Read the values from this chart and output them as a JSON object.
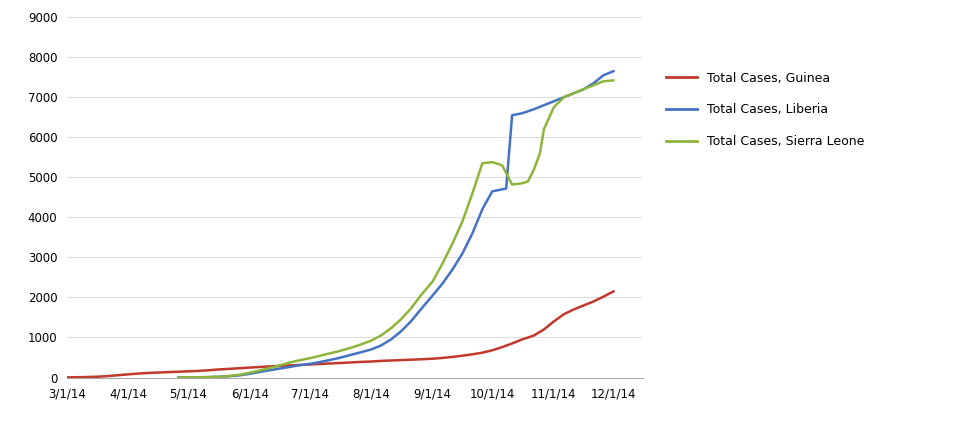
{
  "background_color": "#ffffff",
  "ylim": [
    0,
    9000
  ],
  "yticks": [
    0,
    1000,
    2000,
    3000,
    4000,
    5000,
    6000,
    7000,
    8000,
    9000
  ],
  "xtick_labels": [
    "3/1/14",
    "4/1/14",
    "5/1/14",
    "6/1/14",
    "7/1/14",
    "8/1/14",
    "9/1/14",
    "10/1/14",
    "11/1/14",
    "12/1/14"
  ],
  "legend_labels": [
    "Total Cases, Guinea",
    "Total Cases, Liberia",
    "Total Cases, Sierra Leone"
  ],
  "colors": {
    "guinea": "#c0392b",
    "liberia": "#4472c4",
    "sierra_leone": "#8db53a"
  },
  "guinea_x": [
    0,
    4,
    8,
    12,
    16,
    20,
    25,
    31,
    36,
    41,
    46,
    51,
    56,
    61,
    66,
    71,
    76,
    81,
    86,
    91,
    96,
    101,
    106,
    111,
    116,
    122,
    127,
    132,
    137,
    142,
    147,
    153,
    158,
    163,
    168,
    173,
    178,
    184,
    189,
    194,
    199,
    204,
    209,
    214,
    219,
    224,
    229,
    235,
    240,
    245,
    250,
    255,
    260,
    265,
    270,
    275
  ],
  "guinea_y": [
    4,
    7,
    10,
    15,
    22,
    35,
    55,
    80,
    100,
    115,
    125,
    135,
    145,
    155,
    165,
    180,
    200,
    215,
    230,
    245,
    260,
    275,
    288,
    300,
    312,
    325,
    338,
    350,
    362,
    375,
    388,
    400,
    415,
    425,
    435,
    445,
    455,
    470,
    490,
    515,
    545,
    580,
    620,
    680,
    760,
    850,
    950,
    1050,
    1200,
    1400,
    1580,
    1700,
    1800,
    1900,
    2020,
    2150
  ],
  "liberia_x": [
    56,
    61,
    66,
    71,
    76,
    81,
    86,
    91,
    96,
    101,
    106,
    111,
    116,
    122,
    127,
    132,
    137,
    142,
    147,
    153,
    158,
    163,
    168,
    173,
    178,
    184,
    189,
    194,
    199,
    204,
    209,
    214,
    219,
    221,
    224,
    229,
    232,
    235,
    240,
    245,
    250,
    255,
    260,
    265,
    270,
    275
  ],
  "liberia_y": [
    2,
    4,
    6,
    10,
    18,
    30,
    50,
    85,
    130,
    175,
    215,
    255,
    300,
    340,
    385,
    435,
    490,
    555,
    620,
    700,
    800,
    950,
    1150,
    1400,
    1700,
    2050,
    2350,
    2700,
    3100,
    3600,
    4200,
    4650,
    4700,
    4720,
    6550,
    6600,
    6650,
    6700,
    6800,
    6900,
    7000,
    7100,
    7200,
    7350,
    7550,
    7650
  ],
  "sierra_leone_x": [
    56,
    61,
    66,
    71,
    76,
    81,
    86,
    91,
    96,
    101,
    106,
    111,
    116,
    122,
    127,
    132,
    137,
    142,
    147,
    153,
    158,
    163,
    168,
    173,
    178,
    184,
    189,
    194,
    199,
    204,
    209,
    214,
    219,
    224,
    229,
    232,
    235,
    238,
    240,
    245,
    250,
    255,
    260,
    265,
    270,
    275
  ],
  "sierra_leone_y": [
    2,
    4,
    6,
    10,
    18,
    35,
    65,
    110,
    165,
    225,
    290,
    360,
    420,
    480,
    540,
    600,
    660,
    730,
    810,
    920,
    1050,
    1230,
    1450,
    1720,
    2050,
    2400,
    2850,
    3350,
    3900,
    4600,
    5350,
    5380,
    5300,
    4820,
    4850,
    4900,
    5200,
    5600,
    6200,
    6750,
    7000,
    7100,
    7200,
    7300,
    7400,
    7420
  ]
}
